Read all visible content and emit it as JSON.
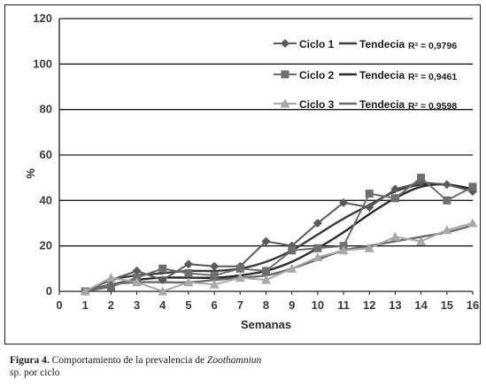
{
  "chart_data": {
    "type": "line",
    "title": "",
    "xlabel": "Semanas",
    "ylabel": "%",
    "xlim": [
      0,
      16
    ],
    "ylim": [
      0,
      120
    ],
    "x_ticks": [
      "0",
      "1",
      "2",
      "3",
      "4",
      "5",
      "6",
      "7",
      "8",
      "9",
      "10",
      "11",
      "12",
      "13",
      "14",
      "15",
      "16"
    ],
    "y_ticks": [
      "0",
      "20",
      "40",
      "60",
      "80",
      "100",
      "120"
    ],
    "grid": "horizontal",
    "legend_position": "top-right",
    "x": [
      1,
      2,
      3,
      4,
      5,
      6,
      7,
      8,
      9,
      10,
      11,
      12,
      13,
      14,
      15,
      16
    ],
    "series": [
      {
        "name": "Ciclo 1",
        "marker": "diamond",
        "color": "#5a5a5a",
        "values": [
          0,
          5,
          9,
          5,
          12,
          11,
          11,
          22,
          20,
          30,
          39,
          37,
          45,
          48,
          47,
          44
        ],
        "trend": {
          "label": "Tendecia",
          "r2": "R² = 0,9796",
          "color": "#3c3c3c",
          "values": [
            0,
            5,
            7,
            8,
            9,
            9,
            10,
            13,
            18,
            25,
            32,
            38,
            44,
            47,
            47,
            45
          ]
        }
      },
      {
        "name": "Ciclo 2",
        "marker": "square",
        "color": "#6e6e6e",
        "values": [
          0,
          2,
          6,
          10,
          8,
          7,
          10,
          9,
          18,
          19,
          20,
          43,
          41,
          50,
          40,
          46
        ],
        "trend": {
          "label": "Tendecia",
          "r2": "R² = 0,9461",
          "color": "#2a2a2a",
          "values": [
            0,
            3,
            5,
            6,
            6,
            6,
            7,
            9,
            13,
            19,
            26,
            34,
            41,
            46,
            47,
            45
          ]
        }
      },
      {
        "name": "Ciclo 3",
        "marker": "triangle",
        "color": "#a8a8a8",
        "values": [
          0,
          6,
          4,
          0,
          4,
          3,
          6,
          5,
          10,
          15,
          18,
          19,
          24,
          22,
          27,
          30
        ],
        "trend": {
          "label": "Tendecia",
          "r2": "R² = 0,9598",
          "color": "#6a6a6a",
          "values": [
            0,
            3,
            4,
            4,
            4,
            5,
            6,
            7,
            10,
            14,
            18,
            20,
            22,
            24,
            26,
            29
          ]
        }
      }
    ]
  },
  "caption": {
    "figure_label": "Figura 4.",
    "text_before": " Comportamiento de la  prevalencia de ",
    "species": "Zoothamniun",
    "text_after": "sp. por ciclo"
  }
}
